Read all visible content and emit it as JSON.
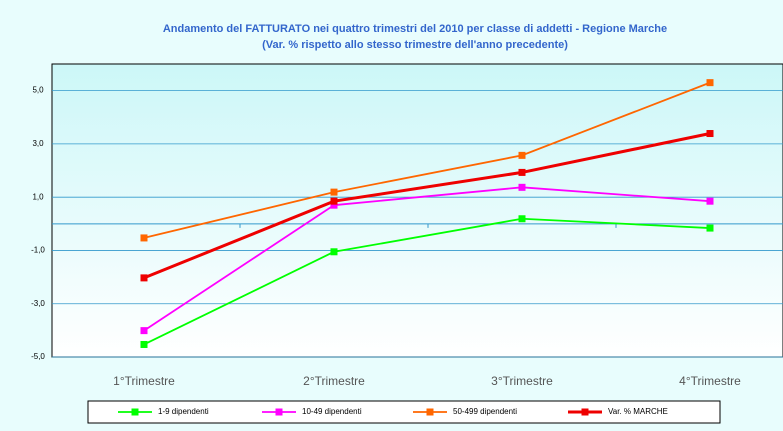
{
  "chart_data": {
    "type": "line",
    "title": "Andamento del FATTURATO nei quattro trimestri del 2010 per classe di addetti - Regione Marche",
    "subtitle": "(Var. % rispetto allo stesso trimestre dell'anno precedente)",
    "categories": [
      "1°Trimestre",
      "2°Trimestre",
      "3°Trimestre",
      "4°Trimestre"
    ],
    "series": [
      {
        "name": "1-9 dipendenti",
        "color": "#00ff00",
        "values": [
          -4.53,
          -1.05,
          0.19,
          -0.16
        ]
      },
      {
        "name": "10-49 dipendenti",
        "color": "#ff00ff",
        "values": [
          -4.01,
          0.7,
          1.37,
          0.85
        ]
      },
      {
        "name": "50-499 dipendenti",
        "color": "#ff6600",
        "values": [
          -0.53,
          1.19,
          2.57,
          5.3
        ]
      },
      {
        "name": "Var. % MARCHE",
        "color": "#ee0000",
        "values": [
          -2.03,
          0.85,
          1.93,
          3.39
        ]
      }
    ],
    "ylim": [
      -5,
      6
    ],
    "yticks": [
      {
        "value": -5,
        "label": "-5,0"
      },
      {
        "value": -3,
        "label": "-3,0"
      },
      {
        "value": -1,
        "label": "-1,0"
      },
      {
        "value": 1,
        "label": "1,0"
      },
      {
        "value": 3,
        "label": "3,0"
      },
      {
        "value": 5,
        "label": "5,0"
      }
    ],
    "grid": true,
    "legend": "bottom"
  }
}
